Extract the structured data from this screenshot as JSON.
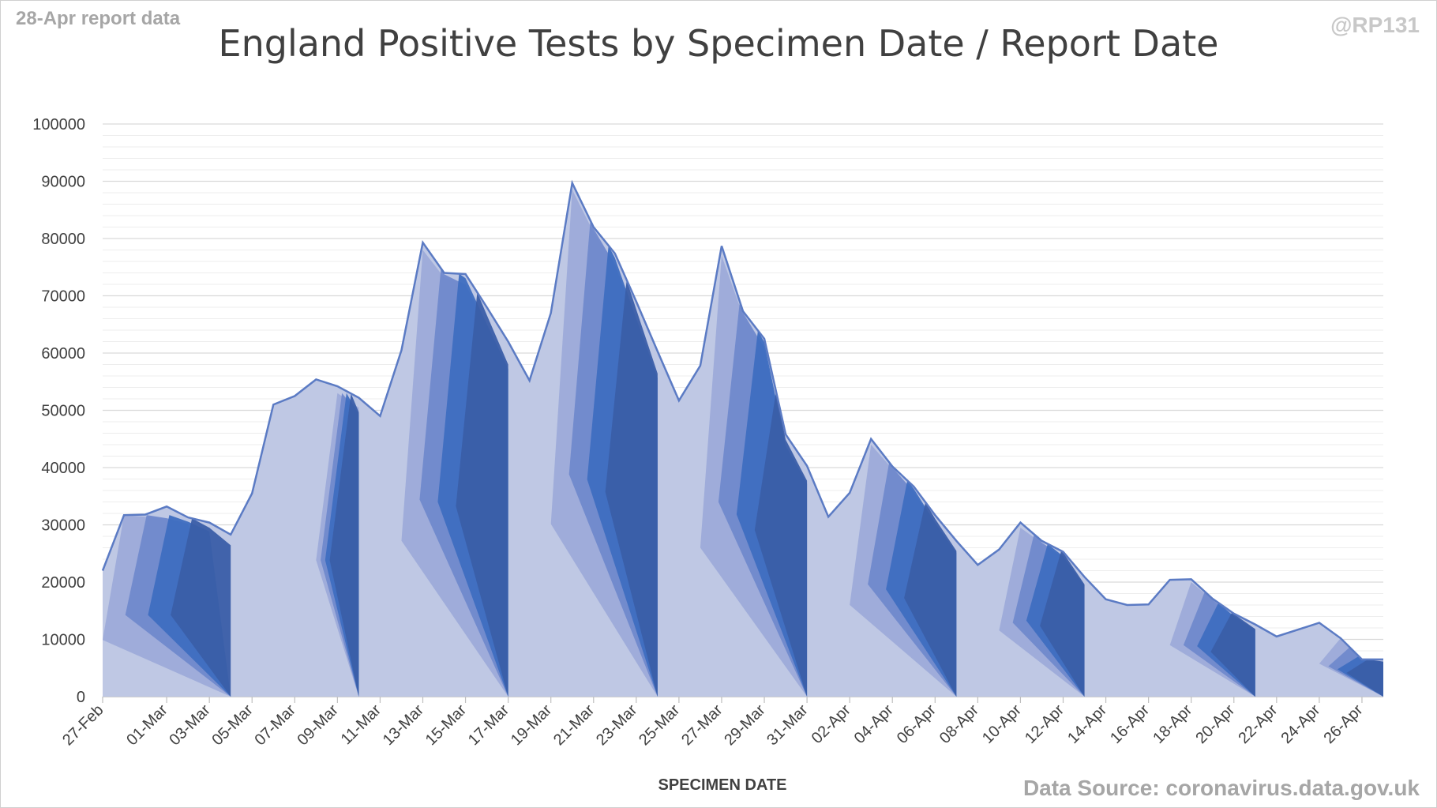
{
  "header": {
    "report_note": "28-Apr report data",
    "handle": "@RP131",
    "source": "Data Source: coronavirus.data.gov.uk"
  },
  "colors": {
    "light": "#bfc8e4",
    "light_mid": "#9dabd9",
    "mid": "#7089cc",
    "strong": "#3e6ec0",
    "dark": "#3a5ea8",
    "outline": "#5b7bc4",
    "grid_major": "#d9d9d9",
    "grid_minor": "#ededed",
    "text": "#404040"
  },
  "chart_data": {
    "type": "area",
    "title": "England Positive Tests by Specimen Date / Report Date",
    "xlabel": "SPECIMEN DATE",
    "ylabel": "",
    "ylim": [
      0,
      100000
    ],
    "yticks": [
      0,
      10000,
      20000,
      30000,
      40000,
      50000,
      60000,
      70000,
      80000,
      90000,
      100000
    ],
    "grid": true,
    "minor_grid_step": 2000,
    "x": [
      "27-Feb",
      "28-Feb",
      "29-Feb",
      "01-Mar",
      "02-Mar",
      "03-Mar",
      "04-Mar",
      "05-Mar",
      "06-Mar",
      "07-Mar",
      "08-Mar",
      "09-Mar",
      "10-Mar",
      "11-Mar",
      "12-Mar",
      "13-Mar",
      "14-Mar",
      "15-Mar",
      "16-Mar",
      "17-Mar",
      "18-Mar",
      "19-Mar",
      "20-Mar",
      "21-Mar",
      "22-Mar",
      "23-Mar",
      "24-Mar",
      "25-Mar",
      "26-Mar",
      "27-Mar",
      "28-Mar",
      "29-Mar",
      "30-Mar",
      "31-Mar",
      "01-Apr",
      "02-Apr",
      "03-Apr",
      "04-Apr",
      "05-Apr",
      "06-Apr",
      "07-Apr",
      "08-Apr",
      "09-Apr",
      "10-Apr",
      "11-Apr",
      "12-Apr",
      "13-Apr",
      "14-Apr",
      "15-Apr",
      "16-Apr",
      "17-Apr",
      "18-Apr",
      "19-Apr",
      "20-Apr",
      "21-Apr",
      "22-Apr",
      "23-Apr",
      "24-Apr",
      "25-Apr",
      "26-Apr",
      "27-Apr"
    ],
    "xtick_labels": [
      "27-Feb",
      "01-Mar",
      "03-Mar",
      "05-Mar",
      "07-Mar",
      "09-Mar",
      "11-Mar",
      "13-Mar",
      "15-Mar",
      "17-Mar",
      "19-Mar",
      "21-Mar",
      "23-Mar",
      "25-Mar",
      "27-Mar",
      "29-Mar",
      "31-Mar",
      "02-Apr",
      "04-Apr",
      "06-Apr",
      "08-Apr",
      "10-Apr",
      "12-Apr",
      "14-Apr",
      "16-Apr",
      "18-Apr",
      "20-Apr",
      "22-Apr",
      "24-Apr",
      "26-Apr"
    ],
    "total": [
      22000,
      31700,
      31800,
      33200,
      31300,
      30400,
      28300,
      35500,
      51000,
      52500,
      55400,
      54200,
      52200,
      49000,
      60500,
      79300,
      74000,
      73800,
      68000,
      62000,
      55200,
      67000,
      89700,
      82000,
      77400,
      69000,
      60300,
      51700,
      57800,
      78700,
      67300,
      62500,
      45800,
      40300,
      31400,
      35600,
      45000,
      40200,
      36700,
      31700,
      27200,
      23000,
      25700,
      30400,
      27200,
      25300,
      20900,
      17000,
      16000,
      16100,
      20400,
      20500,
      17100,
      14500,
      12600,
      10500,
      11700,
      12900,
      10200,
      6500,
      6500
    ],
    "waves": [
      {
        "peak_index": 1,
        "baseline_index": 6,
        "peak": 31700
      },
      {
        "peak_index": 11,
        "baseline_index": 12,
        "peak": 53000
      },
      {
        "peak_index": 15,
        "baseline_index": 19,
        "peak": 78000
      },
      {
        "peak_index": 22,
        "baseline_index": 26,
        "peak": 88500
      },
      {
        "peak_index": 29,
        "baseline_index": 33,
        "peak": 77000
      },
      {
        "peak_index": 36,
        "baseline_index": 40,
        "peak": 44000
      },
      {
        "peak_index": 43,
        "baseline_index": 46,
        "peak": 29500
      },
      {
        "peak_index": 51,
        "baseline_index": 54,
        "peak": 20000
      },
      {
        "peak_index": 58,
        "baseline_index": 60,
        "peak": 12800
      }
    ]
  }
}
